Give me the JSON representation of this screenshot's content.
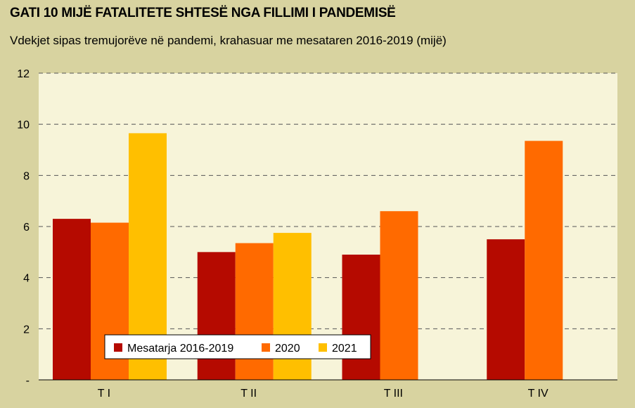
{
  "title": "GATI 10 MIJË FATALITETE SHTESË NGA FILLIMI I PANDEMISË",
  "subtitle": "Vdekjet sipas tremujorëve në pandemi, krahasuar me mesataren 2016-2019 (mijë)",
  "colors": {
    "background": "#d8d3a0",
    "plot_background": "#f7f4d9",
    "gridline": "#555555"
  },
  "chart_data": {
    "type": "bar",
    "categories": [
      "T I",
      "T II",
      "T III",
      "T IV"
    ],
    "series": [
      {
        "name": "Mesatarja 2016-2019",
        "color": "#b50a00",
        "values": [
          6.3,
          5.0,
          4.9,
          5.5
        ]
      },
      {
        "name": "2020",
        "color": "#ff6a00",
        "values": [
          6.15,
          5.35,
          6.6,
          9.35
        ]
      },
      {
        "name": "2021",
        "color": "#ffbf00",
        "values": [
          9.65,
          5.75,
          null,
          null
        ]
      }
    ],
    "ylim": [
      0,
      12
    ],
    "yticks": [
      0,
      2,
      4,
      6,
      8,
      10,
      12
    ],
    "ytick_labels": [
      "-",
      "2",
      "4",
      "6",
      "8",
      "10",
      "12"
    ],
    "grid": true,
    "legend_position": "bottom-left"
  }
}
